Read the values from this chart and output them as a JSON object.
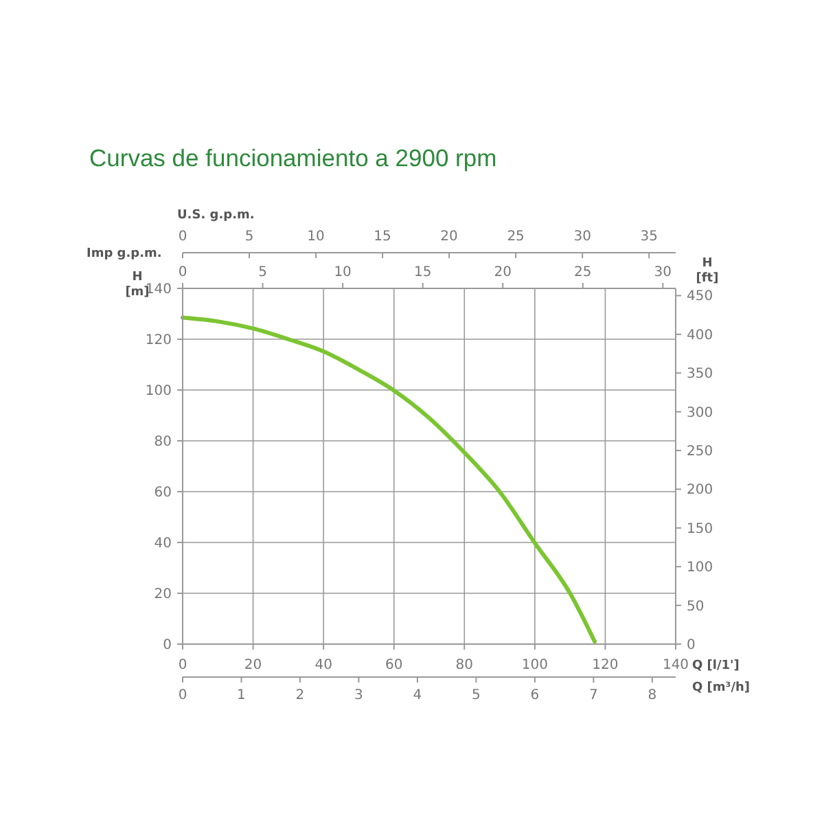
{
  "chart_data": [
    {
      "type": "line",
      "title": "Curvas de funcionamiento a 2900 rpm",
      "xlabel": "Q [l/1']",
      "ylabel": "H\n[m]",
      "y2label": "H\n[ft]",
      "x2label": "Imp g.p.m.",
      "series": [
        {
          "color": "#7cc532",
          "x": [
            0,
            10,
            20,
            30,
            40,
            50,
            60,
            70,
            80,
            90,
            100,
            110,
            117
          ],
          "values": [
            128.5,
            127,
            124.2,
            120,
            115.2,
            108,
            99.8,
            89,
            75.4,
            60,
            39.8,
            20,
            1
          ]
        }
      ],
      "xlim": [
        0,
        140
      ],
      "xticks": [
        0,
        20,
        40,
        60,
        80,
        100,
        120,
        140
      ],
      "ylim": [
        0,
        140
      ],
      "yticks": [
        0,
        20,
        40,
        60,
        80,
        100,
        120,
        140
      ],
      "y2lim": [
        0,
        459.3
      ],
      "y2ticks": [
        0,
        50,
        100,
        150,
        200,
        250,
        300,
        350,
        400,
        450
      ],
      "x2lim": [
        0,
        30.8
      ],
      "x2ticks": [
        0,
        5,
        10,
        15,
        20,
        25,
        30
      ],
      "grid": true,
      "marker": "none",
      "line_style": "solid"
    },
    {
      "type": "line",
      "xlabel": "Q [m³/h]",
      "x2label": "U.S. g.p.m.",
      "ylim": [
        0,
        140
      ],
      "tick_labels": "x",
      "xlim": [
        0,
        8.4
      ],
      "xticks": [
        0,
        1,
        2,
        3,
        4,
        5,
        6,
        7,
        8
      ],
      "x2lim": [
        0,
        37
      ],
      "x2ticks": [
        0,
        5,
        10,
        15,
        20,
        25,
        30,
        35
      ]
    }
  ]
}
